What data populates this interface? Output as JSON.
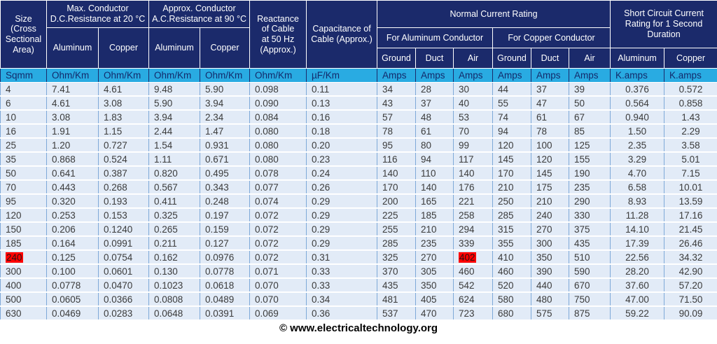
{
  "header": {
    "size": "Size\n(Cross\nSectional\nArea)",
    "dc_group": "Max. Conductor\nD.C.Resistance at 20 °C",
    "ac_group": "Approx. Conductor\nA.C.Resistance at 90 °C",
    "aluminum": "Aluminum",
    "copper": "Copper",
    "reactance": "Reactance\nof Cable\nat 50 Hz\n(Approx.)",
    "capacitance": "Capacitance of\nCable (Approx.)",
    "normal_rating": "Normal Current Rating",
    "for_aluminum": "For Aluminum Conductor",
    "for_copper": "For Copper Conductor",
    "ground": "Ground",
    "duct": "Duct",
    "air": "Air",
    "short_circuit": "Short Circuit Current\nRating for 1 Second\nDuration"
  },
  "chart_data": {
    "type": "table",
    "title": "Cable DC/AC resistance, reactance, capacitance, normal and short-circuit current rating table",
    "columns": [
      "Size (Cross Sectional Area) Sqmm",
      "Max. Conductor D.C.Resistance at 20 °C - Aluminum (Ohm/Km)",
      "Max. Conductor D.C.Resistance at 20 °C - Copper (Ohm/Km)",
      "Approx. Conductor A.C.Resistance at 90 °C - Aluminum (Ohm/Km)",
      "Approx. Conductor A.C.Resistance at 90 °C - Copper (Ohm/Km)",
      "Reactance of Cable at 50 Hz (Approx.) (Ohm/Km)",
      "Capacitance of Cable (Approx.) (µF/Km)",
      "Normal Current Rating - For Aluminum Conductor - Ground (Amps)",
      "Normal Current Rating - For Aluminum Conductor - Duct (Amps)",
      "Normal Current Rating - For Aluminum Conductor - Air (Amps)",
      "Normal Current Rating - For Copper Conductor - Ground (Amps)",
      "Normal Current Rating - For Copper Conductor - Duct (Amps)",
      "Normal Current Rating - For Copper Conductor - Air (Amps)",
      "Short Circuit Current Rating for 1 Second Duration - Aluminum (K.amps)",
      "Short Circuit Current Rating for 1 Second Duration - Copper (K.amps)"
    ],
    "units": [
      "Sqmm",
      "Ohm/Km",
      "Ohm/Km",
      "Ohm/Km",
      "Ohm/Km",
      "Ohm/Km",
      "µF/Km",
      "Amps",
      "Amps",
      "Amps",
      "Amps",
      "Amps",
      "Amps",
      "K.amps",
      "K.amps"
    ],
    "rows": [
      [
        "4",
        "7.41",
        "4.61",
        "9.48",
        "5.90",
        "0.098",
        "0.11",
        "34",
        "28",
        "30",
        "44",
        "37",
        "39",
        "0.376",
        "0.572"
      ],
      [
        "6",
        "4.61",
        "3.08",
        "5.90",
        "3.94",
        "0.090",
        "0.13",
        "43",
        "37",
        "40",
        "55",
        "47",
        "50",
        "0.564",
        "0.858"
      ],
      [
        "10",
        "3.08",
        "1.83",
        "3.94",
        "2.34",
        "0.084",
        "0.16",
        "57",
        "48",
        "53",
        "74",
        "61",
        "67",
        "0.940",
        "1.43"
      ],
      [
        "16",
        "1.91",
        "1.15",
        "2.44",
        "1.47",
        "0.080",
        "0.18",
        "78",
        "61",
        "70",
        "94",
        "78",
        "85",
        "1.50",
        "2.29"
      ],
      [
        "25",
        "1.20",
        "0.727",
        "1.54",
        "0.931",
        "0.080",
        "0.20",
        "95",
        "80",
        "99",
        "120",
        "100",
        "125",
        "2.35",
        "3.58"
      ],
      [
        "35",
        "0.868",
        "0.524",
        "1.11",
        "0.671",
        "0.080",
        "0.23",
        "116",
        "94",
        "117",
        "145",
        "120",
        "155",
        "3.29",
        "5.01"
      ],
      [
        "50",
        "0.641",
        "0.387",
        "0.820",
        "0.495",
        "0.078",
        "0.24",
        "140",
        "110",
        "140",
        "170",
        "145",
        "190",
        "4.70",
        "7.15"
      ],
      [
        "70",
        "0.443",
        "0.268",
        "0.567",
        "0.343",
        "0.077",
        "0.26",
        "170",
        "140",
        "176",
        "210",
        "175",
        "235",
        "6.58",
        "10.01"
      ],
      [
        "95",
        "0.320",
        "0.193",
        "0.411",
        "0.248",
        "0.074",
        "0.29",
        "200",
        "165",
        "221",
        "250",
        "210",
        "290",
        "8.93",
        "13.59"
      ],
      [
        "120",
        "0.253",
        "0.153",
        "0.325",
        "0.197",
        "0.072",
        "0.29",
        "225",
        "185",
        "258",
        "285",
        "240",
        "330",
        "11.28",
        "17.16"
      ],
      [
        "150",
        "0.206",
        "0.1240",
        "0.265",
        "0.159",
        "0.072",
        "0.29",
        "255",
        "210",
        "294",
        "315",
        "270",
        "375",
        "14.10",
        "21.45"
      ],
      [
        "185",
        "0.164",
        "0.0991",
        "0.211",
        "0.127",
        "0.072",
        "0.29",
        "285",
        "235",
        "339",
        "355",
        "300",
        "435",
        "17.39",
        "26.46"
      ],
      [
        "240",
        "0.125",
        "0.0754",
        "0.162",
        "0.0976",
        "0.072",
        "0.31",
        "325",
        "270",
        "402",
        "410",
        "350",
        "510",
        "22.56",
        "34.32"
      ],
      [
        "300",
        "0.100",
        "0.0601",
        "0.130",
        "0.0778",
        "0.071",
        "0.33",
        "370",
        "305",
        "460",
        "460",
        "390",
        "590",
        "28.20",
        "42.90"
      ],
      [
        "400",
        "0.0778",
        "0.0470",
        "0.1023",
        "0.0618",
        "0.070",
        "0.33",
        "435",
        "350",
        "542",
        "520",
        "440",
        "670",
        "37.60",
        "57.20"
      ],
      [
        "500",
        "0.0605",
        "0.0366",
        "0.0808",
        "0.0489",
        "0.070",
        "0.34",
        "481",
        "405",
        "624",
        "580",
        "480",
        "750",
        "47.00",
        "71.50"
      ],
      [
        "630",
        "0.0469",
        "0.0283",
        "0.0648",
        "0.0391",
        "0.069",
        "0.36",
        "537",
        "470",
        "723",
        "680",
        "575",
        "875",
        "59.22",
        "90.09"
      ]
    ],
    "highlights": [
      [
        12,
        0
      ],
      [
        12,
        9
      ]
    ],
    "layout_hints": {
      "grid": true,
      "header_rows": 4,
      "legend_position": "none"
    }
  },
  "colors": {
    "header_bg": "#1b2a6b",
    "units_bg": "#29abe2",
    "row_bg": "#e2ebf7",
    "grid": "#7ea9d8",
    "highlight": "#ff0000",
    "header_text": "#ffffff",
    "data_text": "#3b3b3b"
  },
  "footer": {
    "credit": "© www.electricaltechnology.org"
  }
}
